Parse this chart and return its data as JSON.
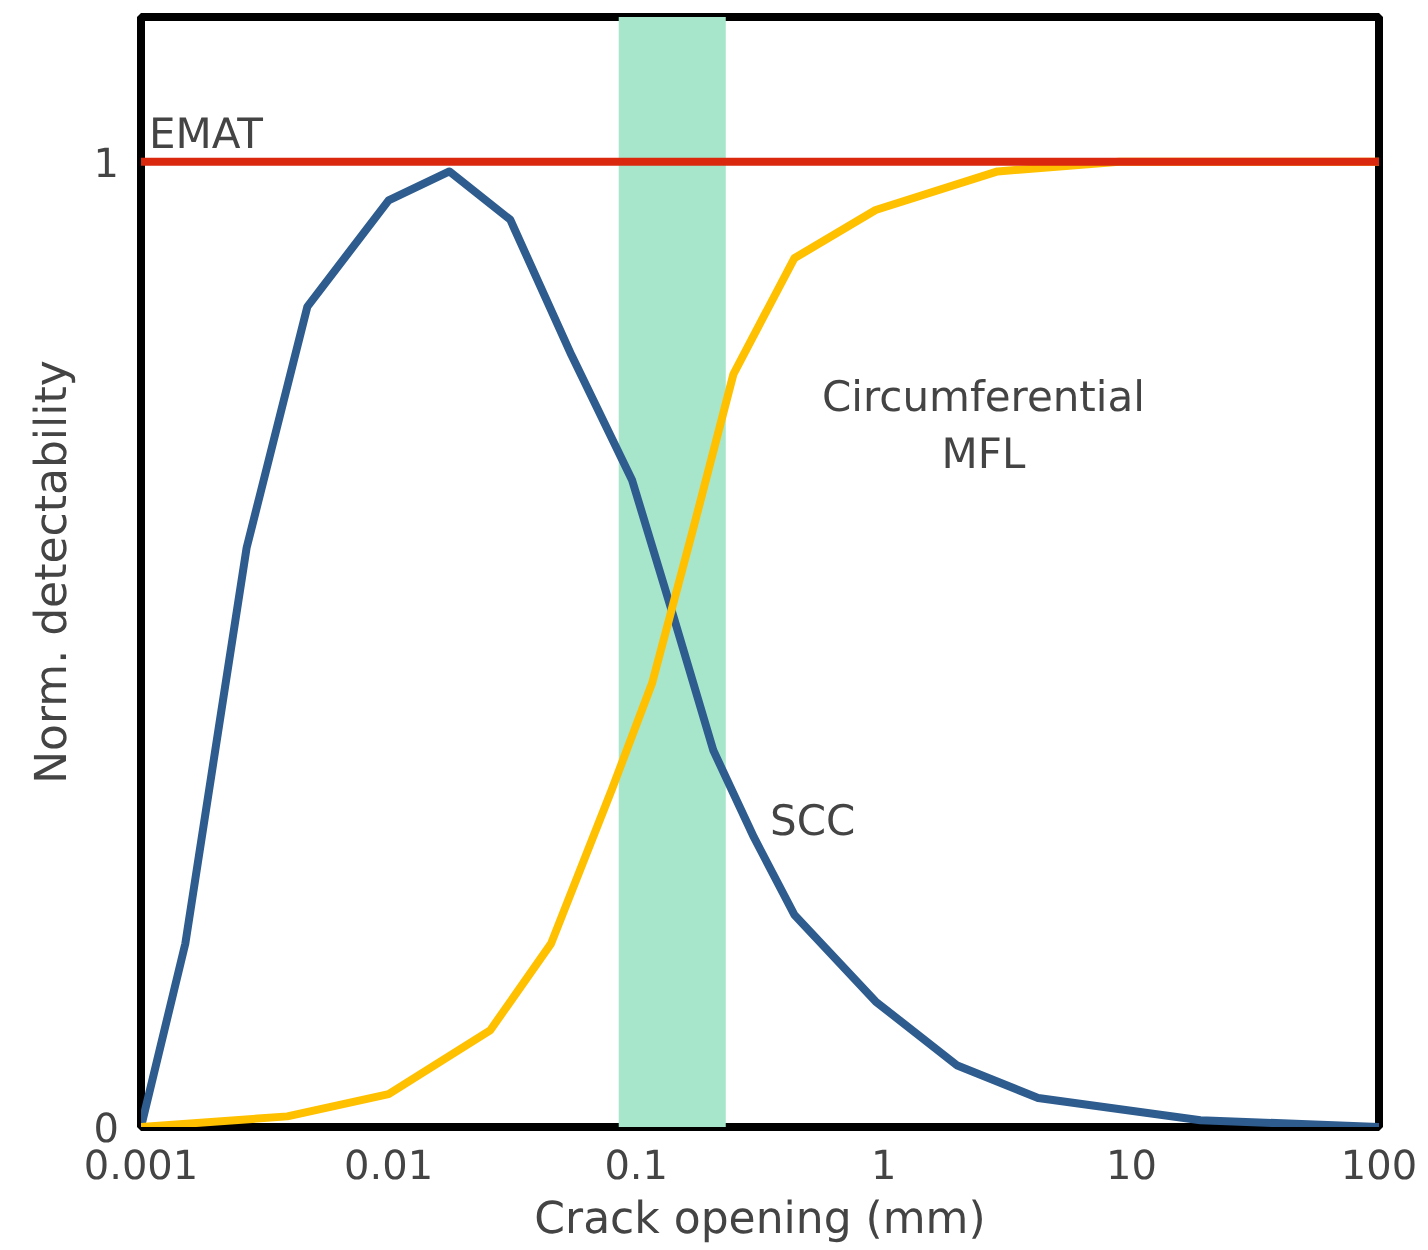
{
  "chart_data": {
    "type": "line",
    "xlabel": "Crack opening (mm)",
    "ylabel": "Norm. detectability",
    "log": "x",
    "xlim": [
      0.001,
      100
    ],
    "xticks": [
      0.001,
      0.01,
      0.1,
      1,
      10,
      100
    ],
    "ylim": [
      0,
      1.15
    ],
    "yticks": [
      0,
      1
    ],
    "grid": false,
    "marker": "none",
    "line_style": "solid",
    "bands": [
      {
        "axis": "x",
        "from": 0.085,
        "to": 0.23,
        "color": "#a8e6cc"
      }
    ],
    "series": [
      {
        "name": "SCC",
        "color": "#2e5c8e",
        "x": [
          0.001,
          0.00151,
          0.00267,
          0.0047,
          0.01,
          0.0176,
          0.031,
          0.0547,
          0.0963,
          0.141,
          0.205,
          0.299,
          0.435,
          0.927,
          1.97,
          4.2,
          19,
          100
        ],
        "values": [
          0,
          0.19,
          0.6,
          0.85,
          0.96,
          0.99,
          0.94,
          0.8,
          0.67,
          0.53,
          0.39,
          0.3,
          0.22,
          0.13,
          0.064,
          0.03,
          0.007,
          0
        ]
      },
      {
        "name": "Circumferential\nMFL",
        "color": "#ffc000",
        "x": [
          0.001,
          0.0039,
          0.01,
          0.0257,
          0.0453,
          0.0798,
          0.116,
          0.17,
          0.247,
          0.435,
          0.927,
          2.88,
          8.93,
          100
        ],
        "values": [
          0,
          0.011,
          0.034,
          0.1,
          0.19,
          0.35,
          0.46,
          0.62,
          0.78,
          0.9,
          0.95,
          0.99,
          1,
          1
        ]
      },
      {
        "name": "EMAT",
        "color": "#d9280e",
        "x": [
          0.001,
          100
        ],
        "values": [
          1,
          1
        ]
      }
    ]
  }
}
